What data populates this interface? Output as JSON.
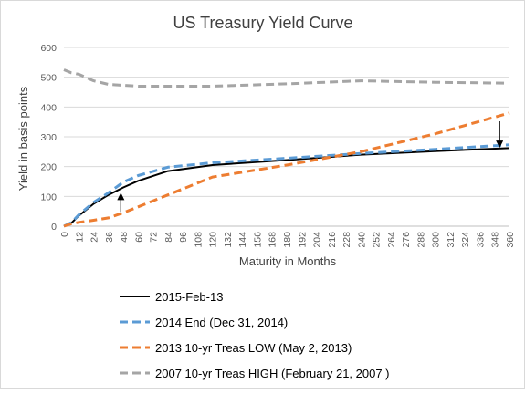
{
  "chart_data": {
    "type": "line",
    "title": "US Treasury  Yield Curve",
    "xlabel": "Maturity in Months",
    "ylabel": "Yield in basis points",
    "xlim": [
      0,
      360
    ],
    "ylim": [
      0,
      600
    ],
    "x_ticks": [
      "0",
      "12",
      "24",
      "36",
      "48",
      "60",
      "72",
      "84",
      "96",
      "108",
      "120",
      "132",
      "144",
      "156",
      "168",
      "180",
      "192",
      "204",
      "216",
      "228",
      "240",
      "252",
      "264",
      "276",
      "288",
      "300",
      "312",
      "324",
      "336",
      "348",
      "360"
    ],
    "y_ticks": [
      "0",
      "100",
      "200",
      "300",
      "400",
      "500",
      "600"
    ],
    "grid": "horizontal",
    "legend_position": "bottom-left",
    "series": [
      {
        "name": "2015-Feb-13",
        "color": "#000000",
        "dash": "solid",
        "points": [
          [
            0,
            0
          ],
          [
            6,
            10
          ],
          [
            12,
            35
          ],
          [
            24,
            75
          ],
          [
            36,
            105
          ],
          [
            48,
            130
          ],
          [
            60,
            152
          ],
          [
            84,
            185
          ],
          [
            120,
            205
          ],
          [
            180,
            222
          ],
          [
            240,
            240
          ],
          [
            300,
            252
          ],
          [
            360,
            262
          ]
        ]
      },
      {
        "name": "2014 End (Dec 31, 2014)",
        "color": "#5b9bd5",
        "dash": "dashed",
        "points": [
          [
            0,
            0
          ],
          [
            6,
            12
          ],
          [
            12,
            38
          ],
          [
            24,
            80
          ],
          [
            36,
            112
          ],
          [
            48,
            148
          ],
          [
            60,
            170
          ],
          [
            84,
            198
          ],
          [
            120,
            213
          ],
          [
            180,
            228
          ],
          [
            240,
            244
          ],
          [
            300,
            258
          ],
          [
            360,
            273
          ]
        ]
      },
      {
        "name": "2013 10-yr Treas LOW (May 2, 2013)",
        "color": "#ed7d31",
        "dash": "dashed",
        "points": [
          [
            0,
            0
          ],
          [
            6,
            8
          ],
          [
            12,
            13
          ],
          [
            24,
            20
          ],
          [
            36,
            28
          ],
          [
            48,
            45
          ],
          [
            60,
            65
          ],
          [
            84,
            105
          ],
          [
            120,
            165
          ],
          [
            180,
            205
          ],
          [
            240,
            250
          ],
          [
            300,
            310
          ],
          [
            360,
            380
          ]
        ]
      },
      {
        "name": "2007 10-yr Treas HIGH (February 21, 2007 )",
        "color": "#a5a5a5",
        "dash": "dashed",
        "points": [
          [
            0,
            525
          ],
          [
            6,
            515
          ],
          [
            12,
            510
          ],
          [
            24,
            488
          ],
          [
            36,
            476
          ],
          [
            60,
            470
          ],
          [
            120,
            470
          ],
          [
            180,
            478
          ],
          [
            240,
            488
          ],
          [
            300,
            483
          ],
          [
            360,
            480
          ]
        ]
      }
    ],
    "annotations": [
      {
        "type": "arrow",
        "x": 46,
        "y_from": 48,
        "y_to": 100,
        "color": "#000000"
      },
      {
        "type": "arrow",
        "x": 352,
        "y_from": 352,
        "y_to": 275,
        "color": "#000000"
      }
    ]
  }
}
